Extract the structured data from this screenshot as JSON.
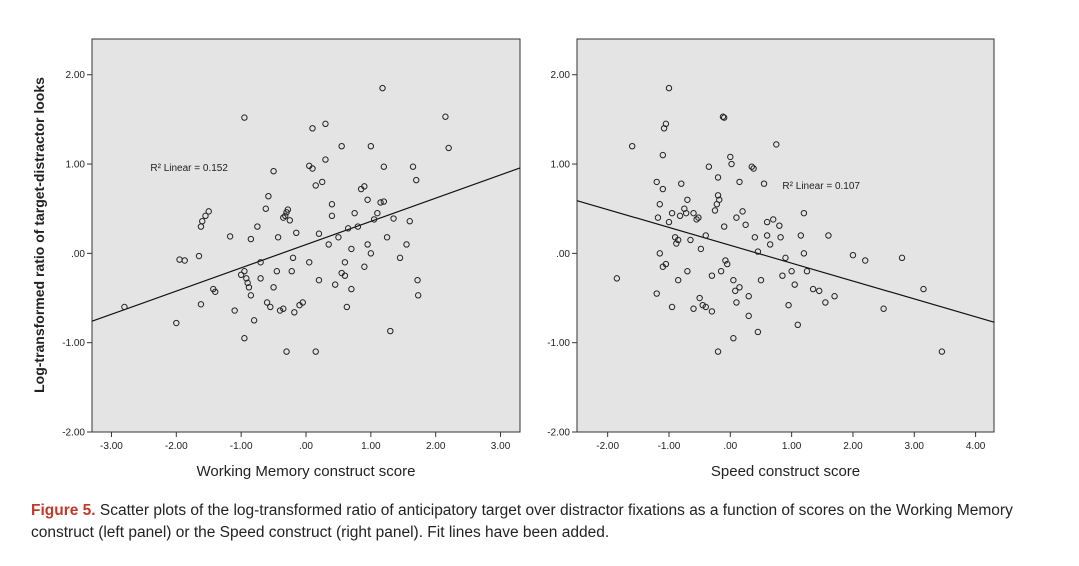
{
  "chart_data": [
    {
      "type": "scatter",
      "xlabel": "Working Memory construct score",
      "ylabel": "Log-transformed ratio of target-distractor looks",
      "xlim": [
        -3.3,
        3.3
      ],
      "ylim": [
        -2.0,
        2.4
      ],
      "x_ticks": [
        -3,
        -2,
        -1,
        0,
        1,
        2,
        3
      ],
      "x_tick_labels": [
        "-3.00",
        "-2.00",
        "-1.00",
        ".00",
        "1.00",
        "2.00",
        "3.00"
      ],
      "y_ticks": [
        -2,
        -1,
        0,
        1,
        2
      ],
      "y_tick_labels": [
        "-2.00",
        "-1.00",
        ".00",
        "1.00",
        "2.00"
      ],
      "fit_line": {
        "intercept": 0.098,
        "slope": 0.26
      },
      "annotation": "R² Linear = 0.152",
      "annotation_pos": {
        "x": -2.4,
        "y": 0.92
      },
      "points": [
        [
          -2.8,
          -0.6
        ],
        [
          -2.0,
          -0.78
        ],
        [
          -1.95,
          -0.07
        ],
        [
          -1.87,
          -0.08
        ],
        [
          -1.65,
          -0.03
        ],
        [
          -1.62,
          0.3
        ],
        [
          -1.6,
          0.36
        ],
        [
          -1.55,
          0.42
        ],
        [
          -1.5,
          0.47
        ],
        [
          -1.43,
          -0.4
        ],
        [
          -1.4,
          -0.43
        ],
        [
          -1.62,
          -0.57
        ],
        [
          -1.17,
          0.19
        ],
        [
          -1.1,
          -0.64
        ],
        [
          -1.0,
          -0.24
        ],
        [
          -0.95,
          -0.2
        ],
        [
          -0.92,
          -0.28
        ],
        [
          -0.9,
          -0.33
        ],
        [
          -0.88,
          -0.38
        ],
        [
          -0.85,
          -0.47
        ],
        [
          -0.95,
          -0.95
        ],
        [
          -0.85,
          0.16
        ],
        [
          -0.8,
          -0.75
        ],
        [
          -0.75,
          0.3
        ],
        [
          -0.7,
          -0.1
        ],
        [
          -0.62,
          0.5
        ],
        [
          -0.58,
          0.64
        ],
        [
          -0.55,
          -0.6
        ],
        [
          -0.5,
          -0.38
        ],
        [
          -0.45,
          -0.2
        ],
        [
          -0.43,
          0.18
        ],
        [
          -0.4,
          -0.64
        ],
        [
          -0.35,
          -0.62
        ],
        [
          -0.32,
          0.42
        ],
        [
          -0.3,
          0.46
        ],
        [
          -0.28,
          0.49
        ],
        [
          -0.25,
          0.37
        ],
        [
          -0.22,
          -0.2
        ],
        [
          -0.2,
          -0.05
        ],
        [
          -0.18,
          -0.66
        ],
        [
          -0.15,
          0.23
        ],
        [
          -0.1,
          -0.58
        ],
        [
          -0.05,
          -0.55
        ],
        [
          -0.3,
          -1.1
        ],
        [
          0.05,
          0.98
        ],
        [
          0.1,
          0.95
        ],
        [
          0.15,
          0.76
        ],
        [
          0.2,
          0.22
        ],
        [
          0.25,
          0.8
        ],
        [
          0.3,
          1.05
        ],
        [
          0.35,
          0.1
        ],
        [
          0.4,
          0.42
        ],
        [
          0.45,
          -0.35
        ],
        [
          0.5,
          0.18
        ],
        [
          0.55,
          -0.22
        ],
        [
          0.6,
          -0.25
        ],
        [
          0.63,
          -0.6
        ],
        [
          0.65,
          0.28
        ],
        [
          0.7,
          0.05
        ],
        [
          0.75,
          0.45
        ],
        [
          0.8,
          0.3
        ],
        [
          0.85,
          0.72
        ],
        [
          0.9,
          0.75
        ],
        [
          0.95,
          0.1
        ],
        [
          1.0,
          1.2
        ],
        [
          1.05,
          0.38
        ],
        [
          1.1,
          0.45
        ],
        [
          1.15,
          0.57
        ],
        [
          1.2,
          0.97
        ],
        [
          1.25,
          0.18
        ],
        [
          1.3,
          -0.87
        ],
        [
          1.35,
          0.39
        ],
        [
          1.55,
          0.1
        ],
        [
          1.6,
          0.36
        ],
        [
          1.65,
          0.97
        ],
        [
          1.7,
          0.82
        ],
        [
          1.72,
          -0.3
        ],
        [
          1.73,
          -0.47
        ],
        [
          1.18,
          1.85
        ],
        [
          -0.95,
          1.52
        ],
        [
          0.55,
          1.2
        ],
        [
          0.3,
          1.45
        ],
        [
          0.1,
          1.4
        ],
        [
          2.15,
          1.53
        ],
        [
          2.2,
          1.18
        ],
        [
          -0.5,
          0.92
        ],
        [
          0.4,
          0.55
        ],
        [
          0.7,
          -0.4
        ],
        [
          0.9,
          -0.15
        ],
        [
          1.0,
          0.0
        ],
        [
          0.2,
          -0.3
        ],
        [
          0.6,
          -0.1
        ],
        [
          0.15,
          -1.1
        ],
        [
          1.2,
          0.58
        ],
        [
          -0.6,
          -0.55
        ],
        [
          -0.7,
          -0.28
        ],
        [
          1.45,
          -0.05
        ],
        [
          -0.35,
          0.4
        ],
        [
          0.05,
          -0.1
        ],
        [
          0.95,
          0.6
        ]
      ]
    },
    {
      "type": "scatter",
      "xlabel": "Speed construct score",
      "xlim": [
        -2.5,
        4.3
      ],
      "ylim": [
        -2.0,
        2.4
      ],
      "x_ticks": [
        -2,
        -1,
        0,
        1,
        2,
        3,
        4
      ],
      "x_tick_labels": [
        "-2.00",
        "-1.00",
        ".00",
        "1.00",
        "2.00",
        "3.00",
        "4.00"
      ],
      "y_ticks": [
        -2,
        -1,
        0,
        1,
        2
      ],
      "y_tick_labels": [
        "-2.00",
        "-1.00",
        ".00",
        "1.00",
        "2.00"
      ],
      "fit_line": {
        "intercept": 0.09,
        "slope": -0.2
      },
      "annotation": "R² Linear = 0.107",
      "annotation_pos": {
        "x": 0.85,
        "y": 0.72
      },
      "points": [
        [
          -1.85,
          -0.28
        ],
        [
          -1.6,
          1.2
        ],
        [
          -1.2,
          0.8
        ],
        [
          -1.15,
          0.55
        ],
        [
          -1.1,
          0.72
        ],
        [
          -1.08,
          1.4
        ],
        [
          -1.05,
          1.45
        ],
        [
          -1.0,
          1.85
        ],
        [
          -1.18,
          0.4
        ],
        [
          -1.15,
          0.0
        ],
        [
          -1.1,
          -0.15
        ],
        [
          -1.05,
          -0.12
        ],
        [
          -1.0,
          0.35
        ],
        [
          -0.95,
          0.45
        ],
        [
          -0.9,
          0.18
        ],
        [
          -0.88,
          0.11
        ],
        [
          -0.85,
          0.15
        ],
        [
          -0.82,
          0.42
        ],
        [
          -0.8,
          0.78
        ],
        [
          -0.75,
          0.5
        ],
        [
          -0.72,
          0.45
        ],
        [
          -0.7,
          0.6
        ],
        [
          -0.65,
          0.15
        ],
        [
          -0.6,
          0.45
        ],
        [
          -0.55,
          0.38
        ],
        [
          -0.52,
          0.4
        ],
        [
          -0.5,
          -0.5
        ],
        [
          -0.48,
          0.05
        ],
        [
          -0.45,
          -0.58
        ],
        [
          -0.4,
          -0.6
        ],
        [
          -0.35,
          0.97
        ],
        [
          -0.3,
          -0.65
        ],
        [
          -0.25,
          0.48
        ],
        [
          -0.22,
          0.55
        ],
        [
          -0.2,
          0.85
        ],
        [
          -0.18,
          0.6
        ],
        [
          -0.15,
          -0.2
        ],
        [
          -0.12,
          1.53
        ],
        [
          -0.1,
          1.52
        ],
        [
          -0.08,
          -0.08
        ],
        [
          -0.05,
          -0.12
        ],
        [
          0.0,
          1.08
        ],
        [
          0.02,
          1.0
        ],
        [
          0.05,
          -0.3
        ],
        [
          0.08,
          -0.42
        ],
        [
          0.1,
          -0.55
        ],
        [
          0.15,
          -0.38
        ],
        [
          0.2,
          0.47
        ],
        [
          0.25,
          0.32
        ],
        [
          0.3,
          -0.48
        ],
        [
          0.35,
          0.97
        ],
        [
          0.38,
          0.95
        ],
        [
          0.4,
          0.18
        ],
        [
          0.45,
          0.02
        ],
        [
          0.5,
          -0.3
        ],
        [
          0.55,
          0.78
        ],
        [
          0.6,
          0.2
        ],
        [
          0.65,
          0.1
        ],
        [
          0.7,
          0.38
        ],
        [
          0.75,
          1.22
        ],
        [
          0.8,
          0.31
        ],
        [
          0.82,
          0.18
        ],
        [
          0.85,
          -0.25
        ],
        [
          0.9,
          -0.05
        ],
        [
          0.95,
          -0.58
        ],
        [
          1.0,
          -0.2
        ],
        [
          1.05,
          -0.35
        ],
        [
          1.1,
          -0.8
        ],
        [
          1.15,
          0.2
        ],
        [
          1.2,
          0.45
        ],
        [
          1.25,
          -0.2
        ],
        [
          1.35,
          -0.4
        ],
        [
          1.45,
          -0.42
        ],
        [
          1.55,
          -0.55
        ],
        [
          1.6,
          0.2
        ],
        [
          1.7,
          -0.48
        ],
        [
          2.0,
          -0.02
        ],
        [
          2.2,
          -0.08
        ],
        [
          2.5,
          -0.62
        ],
        [
          2.8,
          -0.05
        ],
        [
          3.15,
          -0.4
        ],
        [
          3.45,
          -1.1
        ],
        [
          -0.2,
          -1.1
        ],
        [
          0.05,
          -0.95
        ],
        [
          0.45,
          -0.88
        ],
        [
          0.3,
          -0.7
        ],
        [
          -0.3,
          -0.25
        ],
        [
          -0.1,
          0.3
        ],
        [
          0.1,
          0.4
        ],
        [
          -0.6,
          -0.62
        ],
        [
          -0.85,
          -0.3
        ],
        [
          -1.2,
          -0.45
        ],
        [
          -0.95,
          -0.6
        ],
        [
          -0.4,
          0.2
        ],
        [
          0.6,
          0.35
        ],
        [
          1.2,
          0.0
        ],
        [
          -0.7,
          -0.2
        ],
        [
          -0.2,
          0.65
        ],
        [
          0.15,
          0.8
        ],
        [
          -1.1,
          1.1
        ]
      ]
    }
  ],
  "caption": {
    "label": "Figure 5.",
    "text": " Scatter plots of the log-transformed ratio of anticipatory target over distractor fixations as a function of scores on the Working Memory construct (left panel) or the Speed construct (right panel). Fit lines have been added."
  }
}
